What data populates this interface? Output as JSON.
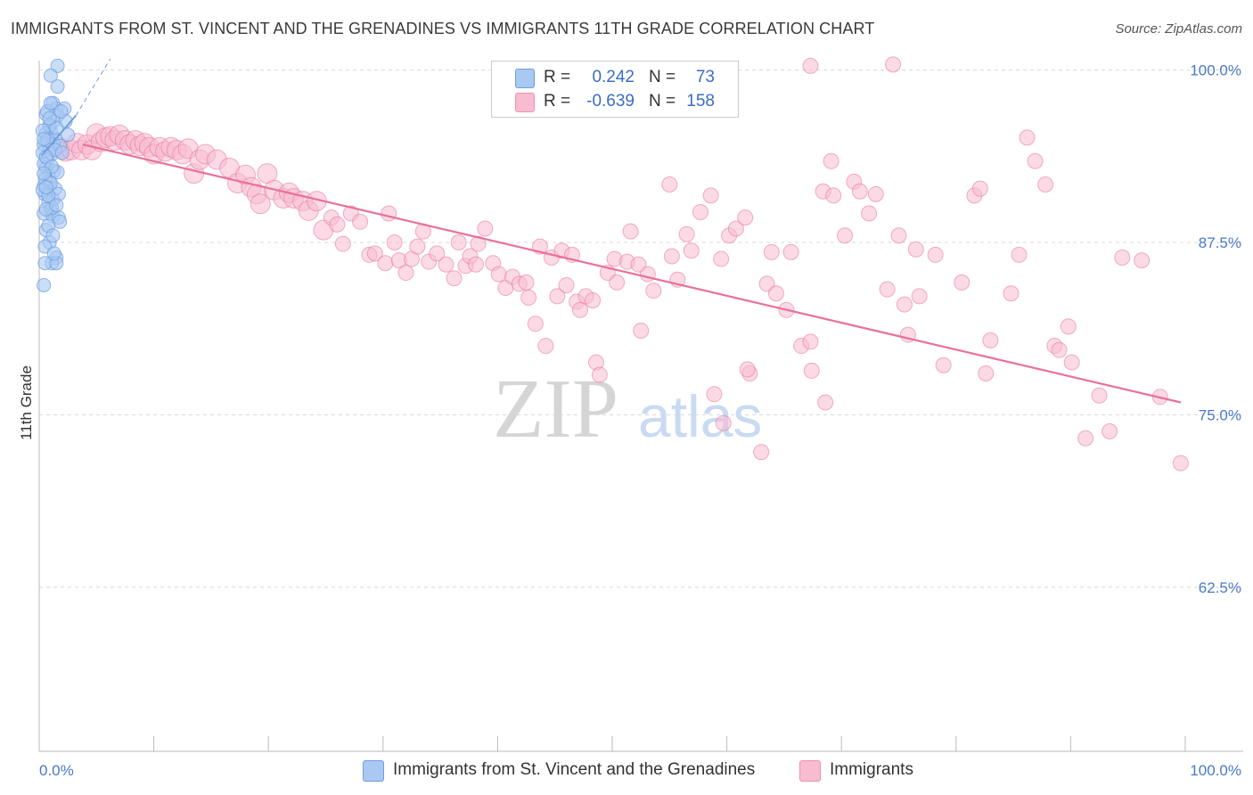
{
  "title": "IMMIGRANTS FROM ST. VINCENT AND THE GRENADINES VS IMMIGRANTS 11TH GRADE CORRELATION CHART",
  "source": "Source: ZipAtlas.com",
  "watermark": {
    "zip": "ZIP",
    "atlas": "atlas"
  },
  "legend": {
    "rows": [
      {
        "r_label": "R =",
        "r_value": "0.242",
        "n_label": "N =",
        "n_value": "73",
        "color": "#a9c8f2",
        "border": "#6d9de0"
      },
      {
        "r_label": "R =",
        "r_value": "-0.639",
        "n_label": "N =",
        "n_value": "158",
        "color": "#f8bcd0",
        "border": "#ee8fb0"
      }
    ]
  },
  "bottom_legend": [
    {
      "label": "Immigrants from St. Vincent and the Grenadines",
      "color": "#a9c8f2",
      "border": "#6d9de0"
    },
    {
      "label": "Immigrants",
      "color": "#f8bcd0",
      "border": "#ee8fb0"
    }
  ],
  "chart_data": {
    "type": "scatter",
    "title": "IMMIGRANTS FROM ST. VINCENT AND THE GRENADINES VS IMMIGRANTS 11TH GRADE CORRELATION CHART",
    "xlabel": "",
    "ylabel": "11th Grade",
    "xlim": [
      0,
      100
    ],
    "ylim": [
      50.6,
      101.2
    ],
    "x_tick_labels": [
      "0.0%",
      "100.0%"
    ],
    "y_ticks": [
      62.5,
      75.0,
      87.5,
      100.0
    ],
    "y_tick_labels": [
      "62.5%",
      "75.0%",
      "87.5%",
      "100.0%"
    ],
    "series": [
      {
        "name": "Immigrants from St. Vincent and the Grenadines",
        "color": "#6d9de0",
        "fill": "#a9c8f2",
        "R": 0.242,
        "N": 73,
        "trend": {
          "x": [
            0.2,
            3.2
          ],
          "y": [
            93.8,
            96.7
          ],
          "dashed_ext_x": [
            3.2,
            6.2
          ],
          "dashed_ext_y": [
            96.7,
            100.8
          ]
        },
        "points": [
          [
            1.6,
            100.3
          ],
          [
            1.0,
            99.6
          ],
          [
            1.6,
            98.8
          ],
          [
            1.2,
            97.6
          ],
          [
            1.5,
            97.2
          ],
          [
            2.2,
            97.2
          ],
          [
            1.6,
            96.7
          ],
          [
            0.6,
            96.8
          ],
          [
            1.3,
            96.3
          ],
          [
            2.3,
            96.3
          ],
          [
            0.9,
            95.9
          ],
          [
            0.6,
            95.4
          ],
          [
            1.1,
            95.4
          ],
          [
            0.8,
            95.0
          ],
          [
            1.4,
            95.0
          ],
          [
            0.4,
            94.6
          ],
          [
            1.2,
            94.6
          ],
          [
            0.9,
            94.2
          ],
          [
            0.3,
            94.0
          ],
          [
            1.1,
            93.9
          ],
          [
            0.7,
            93.5
          ],
          [
            0.6,
            92.9
          ],
          [
            1.3,
            92.7
          ],
          [
            0.8,
            92.3
          ],
          [
            0.9,
            91.9
          ],
          [
            0.4,
            91.6
          ],
          [
            1.4,
            91.4
          ],
          [
            0.5,
            91.0
          ],
          [
            1.2,
            90.6
          ],
          [
            0.8,
            90.4
          ],
          [
            1.0,
            89.8
          ],
          [
            0.4,
            89.6
          ],
          [
            1.2,
            89.4
          ],
          [
            1.7,
            89.3
          ],
          [
            0.6,
            88.4
          ],
          [
            0.9,
            87.5
          ],
          [
            1.5,
            86.4
          ],
          [
            1.1,
            86.0
          ],
          [
            0.5,
            86.0
          ],
          [
            1.5,
            86.0
          ],
          [
            0.4,
            84.4
          ],
          [
            2.5,
            95.3
          ],
          [
            0.7,
            97.0
          ],
          [
            1.9,
            97.0
          ],
          [
            0.9,
            96.0
          ],
          [
            0.3,
            95.6
          ],
          [
            1.5,
            95.8
          ],
          [
            0.7,
            94.9
          ],
          [
            1.8,
            94.5
          ],
          [
            0.4,
            93.2
          ],
          [
            1.6,
            92.6
          ],
          [
            0.5,
            92.1
          ],
          [
            1.0,
            91.8
          ],
          [
            0.3,
            91.3
          ],
          [
            1.1,
            90.0
          ],
          [
            0.6,
            89.9
          ],
          [
            1.8,
            89.0
          ],
          [
            0.8,
            88.7
          ],
          [
            0.5,
            87.2
          ],
          [
            1.3,
            86.7
          ],
          [
            0.9,
            96.5
          ],
          [
            1.4,
            94.2
          ],
          [
            0.6,
            93.7
          ],
          [
            1.1,
            93.0
          ],
          [
            0.4,
            92.5
          ],
          [
            1.7,
            91.0
          ],
          [
            0.8,
            90.9
          ],
          [
            1.2,
            88.0
          ],
          [
            0.4,
            95.0
          ],
          [
            1.0,
            97.6
          ],
          [
            2.0,
            94.0
          ],
          [
            0.6,
            91.5
          ],
          [
            1.5,
            90.2
          ]
        ]
      },
      {
        "name": "Immigrants",
        "color": "#e8709a",
        "fill": "#f8bcd0",
        "R": -0.639,
        "N": 158,
        "trend": {
          "x": [
            3.8,
            99.6
          ],
          "y": [
            94.6,
            75.9
          ]
        },
        "points": [
          [
            1.8,
            94.4
          ],
          [
            2.3,
            94.1
          ],
          [
            2.8,
            94.2
          ],
          [
            3.3,
            94.7
          ],
          [
            3.7,
            94.2
          ],
          [
            4.2,
            94.6
          ],
          [
            4.6,
            94.2
          ],
          [
            5.0,
            95.4
          ],
          [
            5.4,
            94.8
          ],
          [
            5.8,
            95.1
          ],
          [
            6.2,
            95.2
          ],
          [
            6.6,
            94.9
          ],
          [
            7.0,
            95.3
          ],
          [
            7.5,
            94.9
          ],
          [
            7.9,
            94.6
          ],
          [
            8.4,
            94.9
          ],
          [
            8.8,
            94.5
          ],
          [
            9.2,
            94.7
          ],
          [
            9.6,
            94.4
          ],
          [
            10.0,
            93.9
          ],
          [
            10.5,
            94.4
          ],
          [
            11.0,
            94.1
          ],
          [
            11.5,
            94.4
          ],
          [
            12.0,
            94.2
          ],
          [
            12.5,
            93.9
          ],
          [
            13.0,
            94.3
          ],
          [
            13.5,
            92.5
          ],
          [
            14.0,
            93.5
          ],
          [
            14.5,
            93.9
          ],
          [
            15.5,
            93.5
          ],
          [
            16.6,
            92.9
          ],
          [
            17.3,
            91.8
          ],
          [
            18.0,
            92.4
          ],
          [
            18.5,
            91.5
          ],
          [
            19.0,
            91.0
          ],
          [
            19.3,
            90.3
          ],
          [
            19.9,
            92.5
          ],
          [
            20.5,
            91.3
          ],
          [
            21.3,
            90.7
          ],
          [
            21.8,
            91.1
          ],
          [
            22.2,
            90.7
          ],
          [
            23.0,
            90.5
          ],
          [
            23.5,
            89.8
          ],
          [
            24.2,
            90.5
          ],
          [
            24.8,
            88.4
          ],
          [
            25.5,
            89.3
          ],
          [
            26.0,
            88.8
          ],
          [
            26.5,
            87.4
          ],
          [
            27.2,
            89.6
          ],
          [
            28.0,
            89.0
          ],
          [
            28.8,
            86.6
          ],
          [
            29.3,
            86.7
          ],
          [
            30.2,
            86.0
          ],
          [
            30.5,
            89.6
          ],
          [
            31.0,
            87.5
          ],
          [
            31.4,
            86.2
          ],
          [
            32.0,
            85.3
          ],
          [
            32.5,
            86.3
          ],
          [
            33.0,
            87.2
          ],
          [
            33.5,
            88.3
          ],
          [
            34.0,
            86.1
          ],
          [
            34.7,
            86.7
          ],
          [
            35.5,
            85.9
          ],
          [
            36.2,
            84.9
          ],
          [
            36.6,
            87.5
          ],
          [
            37.2,
            85.8
          ],
          [
            37.6,
            86.5
          ],
          [
            38.1,
            85.9
          ],
          [
            38.3,
            87.4
          ],
          [
            38.9,
            88.5
          ],
          [
            39.6,
            86.0
          ],
          [
            40.1,
            85.2
          ],
          [
            40.7,
            84.2
          ],
          [
            41.3,
            85.0
          ],
          [
            41.9,
            84.5
          ],
          [
            42.5,
            84.6
          ],
          [
            42.7,
            83.5
          ],
          [
            43.3,
            81.6
          ],
          [
            43.7,
            87.2
          ],
          [
            44.2,
            80.0
          ],
          [
            44.7,
            86.4
          ],
          [
            45.2,
            83.6
          ],
          [
            45.6,
            86.9
          ],
          [
            46.0,
            84.4
          ],
          [
            46.5,
            86.6
          ],
          [
            46.9,
            83.2
          ],
          [
            47.2,
            82.6
          ],
          [
            47.7,
            83.6
          ],
          [
            48.3,
            83.3
          ],
          [
            48.6,
            78.8
          ],
          [
            48.9,
            77.9
          ],
          [
            49.6,
            85.3
          ],
          [
            50.2,
            86.3
          ],
          [
            50.4,
            84.6
          ],
          [
            51.3,
            86.1
          ],
          [
            51.6,
            88.3
          ],
          [
            52.3,
            85.9
          ],
          [
            52.5,
            81.1
          ],
          [
            53.1,
            85.2
          ],
          [
            53.6,
            84.0
          ],
          [
            55.0,
            91.7
          ],
          [
            55.2,
            86.5
          ],
          [
            55.7,
            84.8
          ],
          [
            56.5,
            88.1
          ],
          [
            56.9,
            86.9
          ],
          [
            57.7,
            89.7
          ],
          [
            58.6,
            90.9
          ],
          [
            58.9,
            76.5
          ],
          [
            59.5,
            86.3
          ],
          [
            60.2,
            88.0
          ],
          [
            60.8,
            88.5
          ],
          [
            61.6,
            89.3
          ],
          [
            62.0,
            78.0
          ],
          [
            63.0,
            72.3
          ],
          [
            63.5,
            84.5
          ],
          [
            63.9,
            86.8
          ],
          [
            64.3,
            83.8
          ],
          [
            65.2,
            82.6
          ],
          [
            65.6,
            86.8
          ],
          [
            66.5,
            80.0
          ],
          [
            67.3,
            80.3
          ],
          [
            67.4,
            78.2
          ],
          [
            68.4,
            91.2
          ],
          [
            68.6,
            75.9
          ],
          [
            69.1,
            93.4
          ],
          [
            69.3,
            90.9
          ],
          [
            70.3,
            88.0
          ],
          [
            71.1,
            91.9
          ],
          [
            71.6,
            91.2
          ],
          [
            72.4,
            89.6
          ],
          [
            73.0,
            91.0
          ],
          [
            74.0,
            84.1
          ],
          [
            75.0,
            88.0
          ],
          [
            75.5,
            83.0
          ],
          [
            75.8,
            80.8
          ],
          [
            76.8,
            83.6
          ],
          [
            76.5,
            87.0
          ],
          [
            78.2,
            86.6
          ],
          [
            78.9,
            78.6
          ],
          [
            80.5,
            84.6
          ],
          [
            81.6,
            90.9
          ],
          [
            82.1,
            91.4
          ],
          [
            82.6,
            78.0
          ],
          [
            83.0,
            80.4
          ],
          [
            84.8,
            83.8
          ],
          [
            85.5,
            86.6
          ],
          [
            86.2,
            95.1
          ],
          [
            86.9,
            93.4
          ],
          [
            87.8,
            91.7
          ],
          [
            88.6,
            80.0
          ],
          [
            89.0,
            79.7
          ],
          [
            89.8,
            81.4
          ],
          [
            90.1,
            78.8
          ],
          [
            91.3,
            73.3
          ],
          [
            92.5,
            76.4
          ],
          [
            93.4,
            73.8
          ],
          [
            94.5,
            86.4
          ],
          [
            96.2,
            86.2
          ],
          [
            97.8,
            76.3
          ],
          [
            99.6,
            71.5
          ],
          [
            61.8,
            78.3
          ],
          [
            59.7,
            74.4
          ],
          [
            74.5,
            100.4
          ],
          [
            67.3,
            100.3
          ]
        ]
      }
    ]
  }
}
